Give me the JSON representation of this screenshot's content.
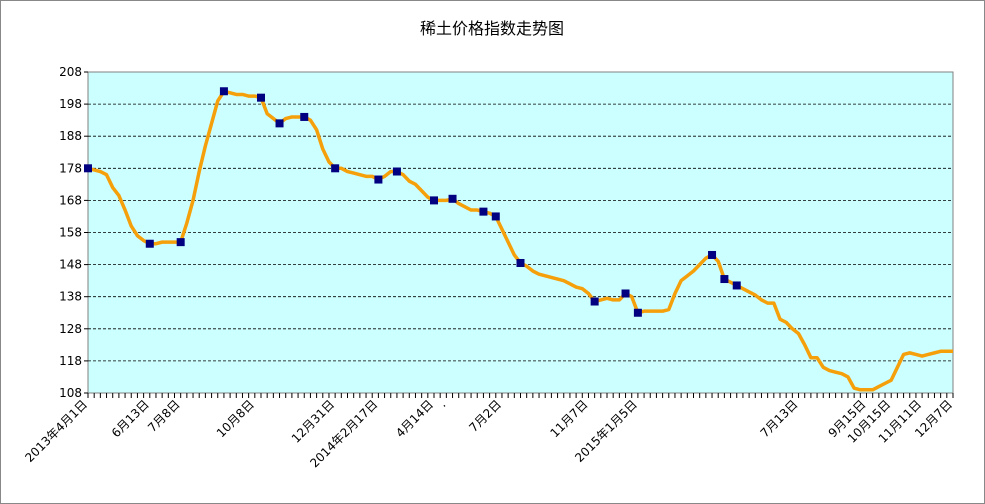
{
  "chart_data": {
    "type": "line",
    "title": "稀土价格指数走势图",
    "categories": [
      "2013年4月1日",
      null,
      null,
      null,
      null,
      null,
      null,
      null,
      null,
      null,
      "6月13日",
      null,
      null,
      null,
      null,
      "7月8日",
      null,
      null,
      null,
      null,
      null,
      null,
      null,
      null,
      null,
      null,
      null,
      "10月8日",
      null,
      null,
      null,
      null,
      null,
      null,
      null,
      null,
      null,
      null,
      null,
      null,
      "12月31日",
      null,
      null,
      null,
      null,
      null,
      null,
      "2014年2月17日",
      null,
      null,
      null,
      null,
      null,
      null,
      null,
      null,
      "4月14日",
      null,
      ".",
      null,
      null,
      null,
      null,
      null,
      null,
      null,
      null,
      "7月2日",
      null,
      null,
      null,
      null,
      null,
      null,
      null,
      null,
      null,
      null,
      null,
      null,
      null,
      "11月7日",
      null,
      null,
      null,
      null,
      null,
      null,
      null,
      "2015年1月5日",
      null,
      null,
      null,
      null,
      null,
      null,
      null,
      null,
      null,
      null,
      null,
      null,
      null,
      null,
      null,
      null,
      null,
      null,
      null,
      null,
      null,
      null,
      null,
      null,
      null,
      "7月13日",
      null,
      null,
      null,
      null,
      null,
      null,
      null,
      null,
      null,
      null,
      "9月15日",
      null,
      null,
      null,
      "10月15日",
      null,
      null,
      null,
      null,
      "11月11日",
      null,
      null,
      null,
      null,
      "12月7日"
    ],
    "series": [
      {
        "color": "#f5a00a",
        "line": true,
        "marker": null,
        "values": [
          178,
          177.5,
          177,
          176,
          172,
          169.5,
          165,
          160,
          157,
          155.5,
          154.5,
          154.5,
          155,
          155,
          155,
          155,
          161,
          168,
          177,
          185,
          192,
          199,
          202,
          201.5,
          201,
          201,
          200.5,
          200.5,
          200,
          195,
          193.5,
          192,
          193.5,
          194,
          194,
          194,
          193,
          190,
          184,
          180,
          178,
          178,
          177,
          176.5,
          176,
          175.5,
          175.5,
          174.5,
          175.5,
          177,
          177,
          176,
          174,
          173,
          171,
          169,
          168,
          168,
          168,
          168.5,
          167,
          166,
          165,
          165,
          164.5,
          164,
          163,
          159,
          155,
          151,
          148.5,
          147.5,
          146,
          145,
          144.5,
          144,
          143.5,
          143,
          142,
          141,
          140.5,
          139,
          136.5,
          137,
          137.5,
          137,
          137,
          139,
          138,
          133,
          133.5,
          133.5,
          133.5,
          133.5,
          134,
          139,
          143,
          144.5,
          146,
          148,
          150,
          151,
          149,
          143.5,
          142.5,
          141.5,
          140.5,
          139.5,
          138.5,
          137,
          136,
          136,
          131,
          130,
          128,
          126.5,
          123,
          119,
          119,
          116,
          115,
          114.5,
          114,
          113,
          109.5,
          109,
          109,
          109,
          110,
          111,
          112,
          116,
          120,
          120.5,
          120,
          119.5,
          120,
          120.5,
          121,
          121,
          121
        ]
      },
      {
        "color": "#000080",
        "line": false,
        "marker": "square",
        "values": [
          178,
          null,
          null,
          null,
          null,
          null,
          null,
          null,
          null,
          null,
          154.5,
          null,
          null,
          null,
          null,
          155,
          null,
          null,
          null,
          null,
          null,
          null,
          202,
          null,
          null,
          null,
          null,
          null,
          200,
          null,
          null,
          192,
          null,
          null,
          null,
          194,
          null,
          null,
          null,
          null,
          178,
          null,
          null,
          null,
          null,
          null,
          null,
          174.5,
          null,
          null,
          177,
          null,
          null,
          null,
          null,
          null,
          168,
          null,
          null,
          168.5,
          null,
          null,
          null,
          null,
          164.5,
          null,
          163,
          null,
          null,
          null,
          148.5,
          null,
          null,
          null,
          null,
          null,
          null,
          null,
          null,
          null,
          null,
          null,
          136.5,
          null,
          null,
          null,
          null,
          139,
          null,
          133,
          null,
          null,
          null,
          null,
          null,
          null,
          null,
          null,
          null,
          null,
          null,
          151,
          null,
          143.5,
          null,
          141.5,
          null,
          null,
          null,
          null,
          null,
          null,
          null,
          null,
          null,
          null,
          null,
          null,
          null,
          null,
          null,
          null,
          null,
          null,
          null,
          null,
          null,
          null,
          null,
          null,
          null,
          null,
          null,
          null,
          null,
          null,
          null,
          null,
          null,
          null,
          null
        ]
      }
    ],
    "ylim": [
      108,
      208
    ],
    "yticks": [
      108,
      118,
      128,
      138,
      148,
      158,
      168,
      178,
      188,
      198,
      208
    ],
    "grid": true,
    "plot_background": "#ccffff"
  }
}
